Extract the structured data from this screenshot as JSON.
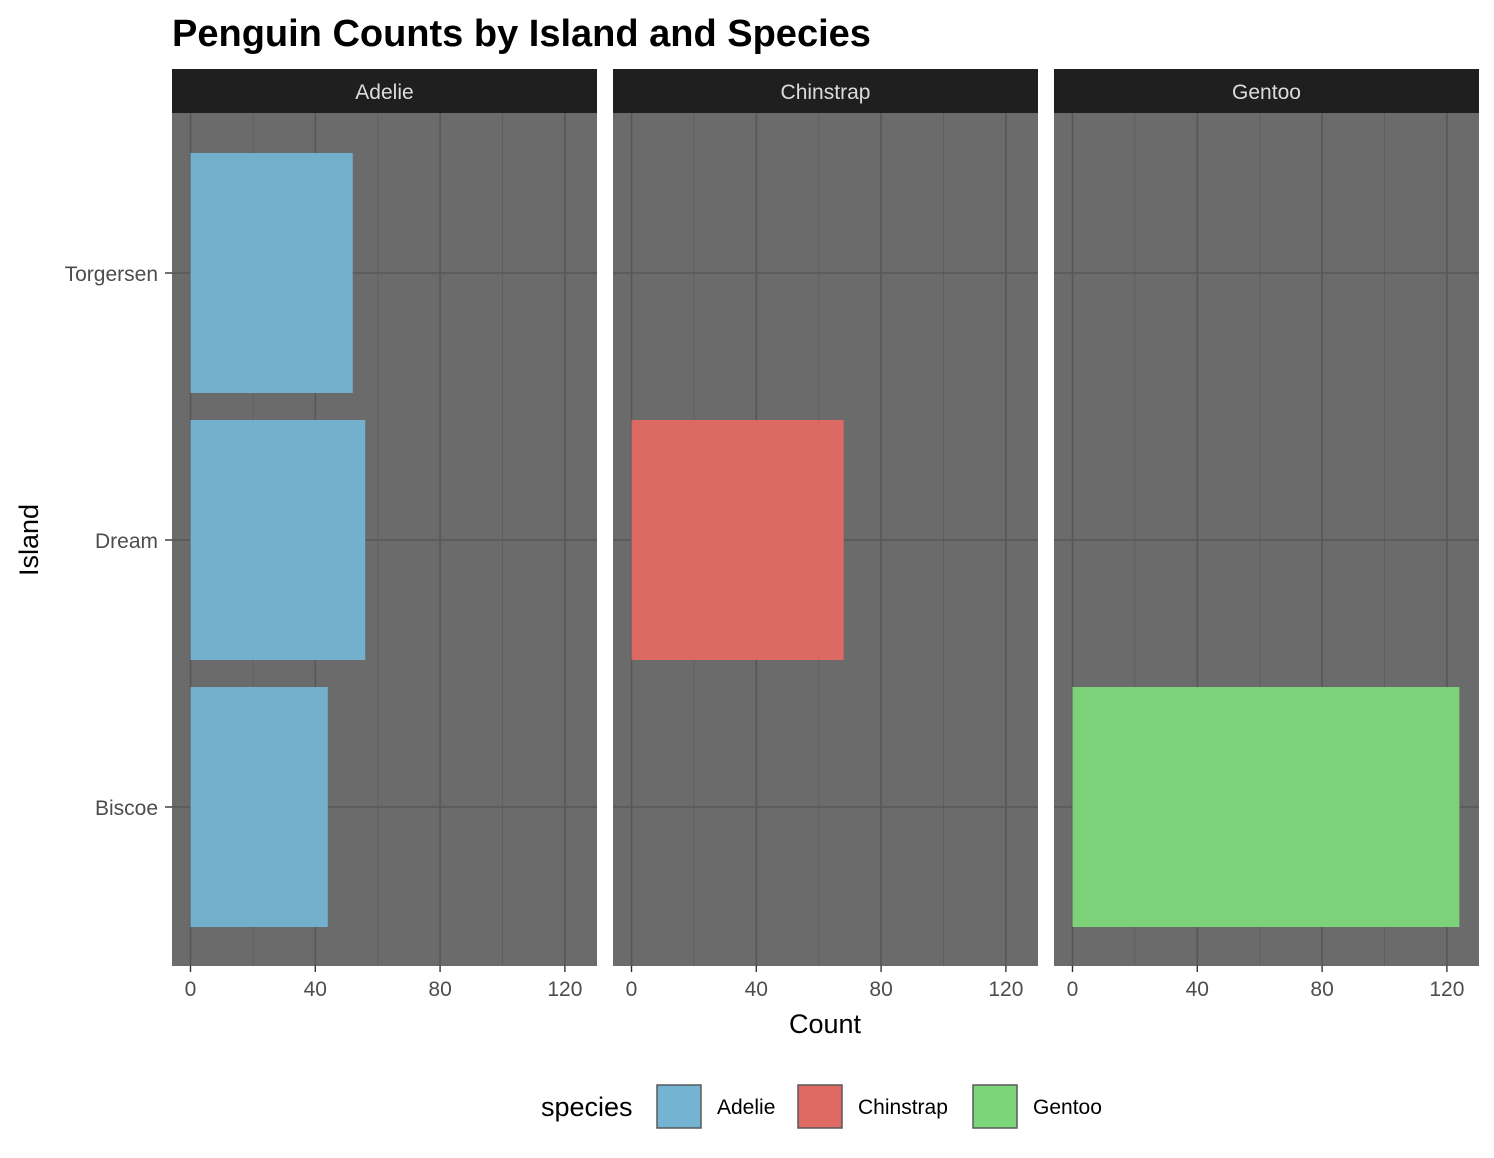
{
  "chart_data": {
    "type": "bar",
    "orientation": "horizontal",
    "title": "Penguin Counts by Island and Species",
    "xlabel": "Count",
    "ylabel": "Island",
    "xlim": [
      0,
      130
    ],
    "x_ticks": [
      "0",
      "40",
      "80",
      "120"
    ],
    "categories": [
      "Torgersen",
      "Dream",
      "Biscoe"
    ],
    "facets": [
      {
        "name": "Adelie",
        "color": "#74B3D1",
        "values": [
          52,
          56,
          44
        ]
      },
      {
        "name": "Chinstrap",
        "color": "#DE6A63",
        "values": [
          0,
          68,
          0
        ]
      },
      {
        "name": "Gentoo",
        "color": "#7DD57A",
        "values": [
          0,
          0,
          124
        ]
      }
    ],
    "legend": {
      "title": "species",
      "position": "bottom",
      "entries": [
        {
          "label": "Adelie",
          "color": "#74B3D1"
        },
        {
          "label": "Chinstrap",
          "color": "#DE6A63"
        },
        {
          "label": "Gentoo",
          "color": "#7DD57A"
        }
      ]
    },
    "panel_background": "#6B6B6B",
    "strip_background": "#1F1F1F",
    "grid": true
  }
}
